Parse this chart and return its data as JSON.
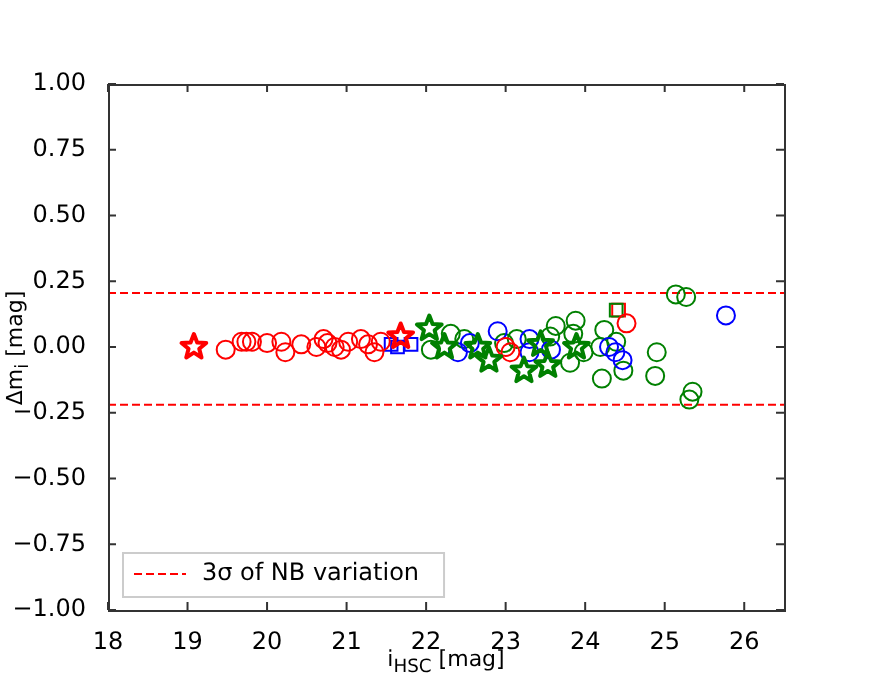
{
  "chart_data": {
    "type": "scatter",
    "xlabel": "i$_{HSC}$ [mag]",
    "ylabel": "Δm$_{i}$ [mag]",
    "xlim": [
      18,
      26.5
    ],
    "xticks": [
      18,
      19,
      20,
      21,
      22,
      23,
      24,
      25,
      26
    ],
    "ylim": [
      -1,
      1
    ],
    "yticks": [
      {
        "value": -1,
        "label": "−1.00"
      },
      {
        "value": -0.75,
        "label": "−0.75"
      },
      {
        "value": -0.5,
        "label": "−0.50"
      },
      {
        "value": -0.25,
        "label": "−0.25"
      },
      {
        "value": 0,
        "label": "0.00"
      },
      {
        "value": 0.25,
        "label": "0.25"
      },
      {
        "value": 0.5,
        "label": "0.50"
      },
      {
        "value": 0.75,
        "label": "0.75"
      },
      {
        "value": 1,
        "label": "1.00"
      }
    ],
    "grid": false,
    "legend": "bottom left",
    "ref_lines": [
      {
        "axis": "y",
        "value": 0.205,
        "label": "3σ of NB variation",
        "color": "#ff0000",
        "line_style": "dashed"
      },
      {
        "axis": "y",
        "value": -0.22,
        "color": "#ff0000",
        "line_style": "dashed"
      }
    ],
    "series": [
      {
        "color": "#ff0000",
        "marker": "circle",
        "x": [
          19.48,
          19.68,
          19.74,
          19.81,
          20.0,
          20.18,
          20.23,
          20.43,
          20.62,
          20.71,
          20.76,
          20.85,
          20.93,
          21.02,
          21.18,
          21.27,
          21.35,
          21.43,
          23.0,
          23.06,
          24.52
        ],
        "values": [
          -0.01,
          0.02,
          0.02,
          0.02,
          0.015,
          0.02,
          -0.02,
          0.01,
          0,
          0.03,
          0.015,
          0,
          -0.01,
          0.02,
          0.03,
          0.01,
          -0.02,
          0.02,
          0,
          -0.02,
          0.09
        ]
      },
      {
        "color": "#0000ff",
        "marker": "circle",
        "x": [
          22.4,
          22.55,
          22.9,
          23.3,
          23.3,
          23.57,
          24.3,
          24.38,
          24.47,
          25.77
        ],
        "values": [
          -0.02,
          0.015,
          0.06,
          0.03,
          -0.02,
          -0.01,
          0,
          -0.02,
          -0.05,
          0.12
        ]
      },
      {
        "color": "#0000ff",
        "marker": "square",
        "x": [
          21.56,
          21.64,
          21.81
        ],
        "values": [
          0.01,
          0,
          0.01
        ]
      },
      {
        "color": "#008000",
        "marker": "circle",
        "x": [
          25.14,
          25.27,
          25.35,
          25.31,
          24.9,
          24.88,
          24.21,
          24.24,
          24.48,
          24.39,
          23.63,
          23.88,
          23.85,
          23.81,
          23.98,
          23.14,
          23.56,
          23.48,
          22.31,
          22.48,
          22.06,
          22.73,
          22.98,
          24.19
        ],
        "values": [
          0.2,
          0.19,
          -0.17,
          -0.2,
          -0.02,
          -0.11,
          -0.12,
          0.065,
          -0.09,
          0.02,
          0.08,
          0.1,
          0.05,
          -0.06,
          -0.02,
          0.03,
          0.04,
          null,
          0.05,
          0.03,
          -0.01,
          null,
          0.015,
          0
        ]
      },
      {
        "color": "#008000",
        "marker": "square",
        "x": [
          24.39
        ],
        "values": [
          0.14
        ]
      },
      {
        "color": "#ff0000",
        "marker": "square",
        "x": [
          24.42
        ],
        "values": [
          0.14
        ]
      },
      {
        "color": "#008000",
        "marker": "star",
        "x": [
          22.04,
          22.79,
          23.23,
          23.53,
          23.89,
          22.23,
          22.65,
          23.44
        ],
        "values": [
          0.07,
          -0.05,
          -0.09,
          -0.07,
          0,
          0,
          0,
          0.01
        ]
      },
      {
        "color": "#ff0000",
        "marker": "star",
        "x": [
          19.08,
          21.68
        ],
        "values": [
          0,
          0.04
        ]
      }
    ]
  }
}
